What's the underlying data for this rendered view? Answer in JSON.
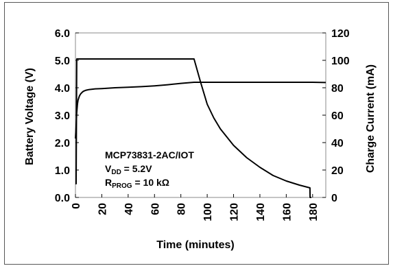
{
  "chart_data": {
    "type": "line",
    "xlabel": "Time (minutes)",
    "ylabel_left": "Battery Voltage (V)",
    "ylabel_right": "Charge Current (mA)",
    "xlim": [
      0,
      190
    ],
    "ylim_left": [
      0.0,
      6.0
    ],
    "ylim_right": [
      0,
      120
    ],
    "x_ticks": [
      "0",
      "20",
      "40",
      "60",
      "80",
      "100",
      "120",
      "140",
      "160",
      "180"
    ],
    "y_left_ticks": [
      "0.0",
      "1.0",
      "2.0",
      "3.0",
      "4.0",
      "5.0",
      "6.0"
    ],
    "y_right_ticks": [
      "0",
      "20",
      "40",
      "60",
      "80",
      "100",
      "120"
    ],
    "grid": false,
    "annotation": {
      "line1": "MCP73831-2AC/IOT",
      "line2_main": "V",
      "line2_sub": "DD",
      "line2_rest": " = 5.2V",
      "line3_main": "R",
      "line3_sub": "PROG",
      "line3_rest": " = 10 kΩ"
    },
    "series": [
      {
        "axis": "left",
        "x": [
          0,
          0.5,
          1,
          1.5,
          2,
          3,
          4,
          5,
          6,
          8,
          10,
          15,
          20,
          30,
          40,
          50,
          60,
          70,
          80,
          90,
          95,
          100,
          120,
          140,
          160,
          180,
          190
        ],
        "y": [
          2.15,
          2.6,
          3.1,
          3.4,
          3.55,
          3.7,
          3.78,
          3.83,
          3.87,
          3.91,
          3.93,
          3.96,
          3.97,
          4.0,
          4.02,
          4.04,
          4.07,
          4.11,
          4.16,
          4.2,
          4.2,
          4.2,
          4.2,
          4.2,
          4.2,
          4.2,
          4.19
        ]
      },
      {
        "axis": "right",
        "x": [
          0,
          0.5,
          1,
          2,
          90,
          95,
          100,
          105,
          110,
          120,
          130,
          140,
          150,
          160,
          170,
          178,
          178.1,
          179
        ],
        "y": [
          10,
          10,
          101,
          101,
          101,
          84,
          68,
          58,
          50,
          38,
          29,
          22,
          16,
          12,
          9,
          7,
          0,
          0
        ]
      }
    ]
  }
}
